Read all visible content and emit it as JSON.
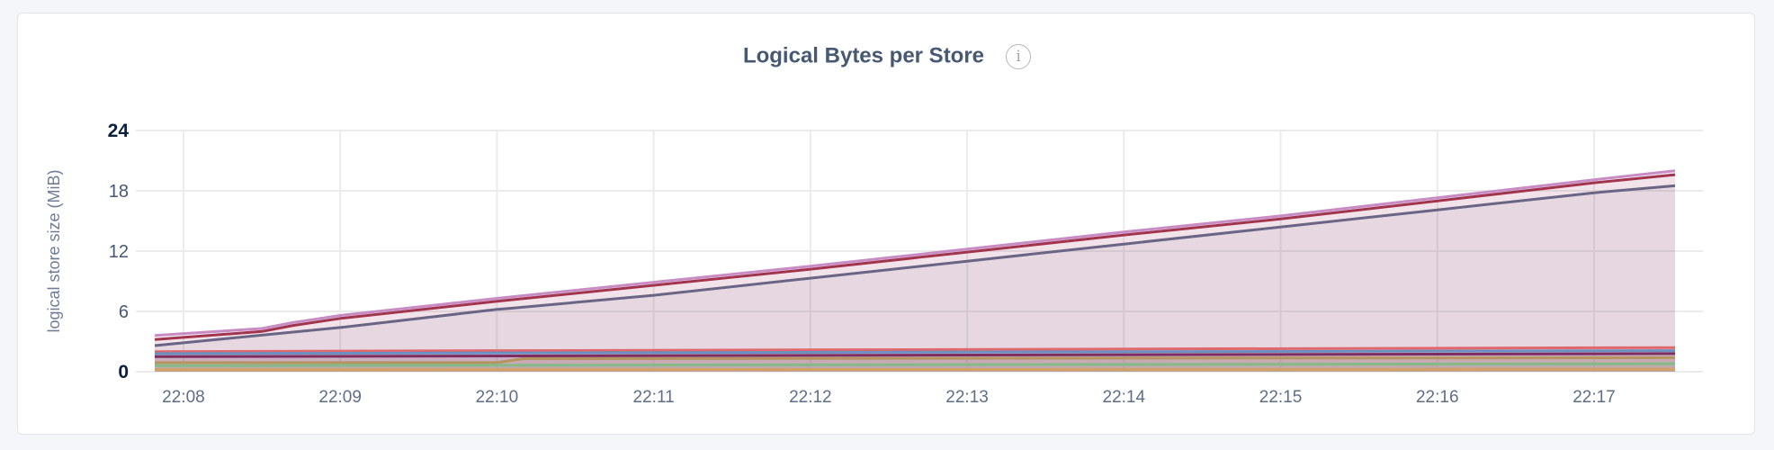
{
  "chart_data": {
    "type": "area",
    "title": "Logical Bytes per Store",
    "info_icon": "info-circle-icon",
    "ylabel": "logical store size (MiB)",
    "xlabel": "",
    "ylim": [
      0,
      24
    ],
    "yticks": [
      "0",
      "6",
      "12",
      "18",
      "24"
    ],
    "xticks": [
      "22:08",
      "22:09",
      "22:10",
      "22:11",
      "22:12",
      "22:13",
      "22:14",
      "22:15",
      "22:16",
      "22:17"
    ],
    "xlim": [
      "22:07:49",
      "22:17:31"
    ],
    "grid": true,
    "legend": "none",
    "series": [
      {
        "color": "#c98bc4",
        "x": [
          "22:07:49",
          "22:08:30",
          "22:08:42",
          "22:09:00",
          "22:10:00",
          "22:11:00",
          "22:12:00",
          "22:13:00",
          "22:14:00",
          "22:15:00",
          "22:16:00",
          "22:17:00",
          "22:17:31"
        ],
        "values": [
          3.6,
          4.3,
          4.9,
          5.6,
          7.3,
          8.9,
          10.5,
          12.2,
          13.9,
          15.5,
          17.3,
          19.1,
          20.0
        ]
      },
      {
        "color": "#a1354e",
        "x": [
          "22:07:49",
          "22:08:30",
          "22:08:42",
          "22:09:00",
          "22:10:00",
          "22:11:00",
          "22:12:00",
          "22:13:00",
          "22:14:00",
          "22:15:00",
          "22:16:00",
          "22:17:00",
          "22:17:31"
        ],
        "values": [
          3.2,
          4.0,
          4.6,
          5.3,
          7.0,
          8.6,
          10.2,
          11.9,
          13.6,
          15.2,
          17.0,
          18.8,
          19.6
        ]
      },
      {
        "color": "#6a6585",
        "x": [
          "22:07:49",
          "22:09:00",
          "22:10:00",
          "22:10:05",
          "22:11:00",
          "22:12:00",
          "22:13:00",
          "22:14:00",
          "22:15:00",
          "22:16:00",
          "22:17:00",
          "22:17:31"
        ],
        "values": [
          2.6,
          4.4,
          6.2,
          6.3,
          7.6,
          9.3,
          11.0,
          12.7,
          14.4,
          16.1,
          17.8,
          18.5
        ]
      },
      {
        "color": "#e0676b",
        "x": [
          "22:07:49",
          "22:17:31"
        ],
        "values": [
          2.0,
          2.4
        ]
      },
      {
        "color": "#6b8fc0",
        "x": [
          "22:07:49",
          "22:17:31"
        ],
        "values": [
          1.8,
          2.1
        ]
      },
      {
        "color": "#7d2d5f",
        "x": [
          "22:07:49",
          "22:17:31"
        ],
        "values": [
          1.5,
          1.8
        ]
      },
      {
        "color": "#b59460",
        "x": [
          "22:07:49",
          "22:10:00",
          "22:10:10",
          "22:17:31"
        ],
        "values": [
          0.9,
          0.9,
          1.3,
          1.4
        ]
      },
      {
        "color": "#85b987",
        "x": [
          "22:07:49",
          "22:17:31"
        ],
        "values": [
          0.6,
          0.8
        ]
      },
      {
        "color": "#d4a066",
        "x": [
          "22:07:49",
          "22:17:31"
        ],
        "values": [
          0.2,
          0.25
        ]
      }
    ]
  }
}
